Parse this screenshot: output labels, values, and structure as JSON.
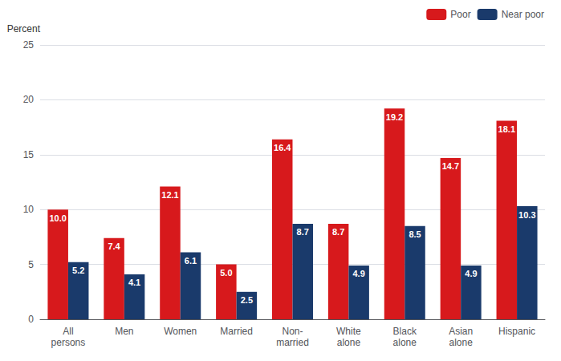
{
  "chart_data": {
    "type": "bar",
    "categories": [
      "All\npersons",
      "Men",
      "Women",
      "Married",
      "Non-\nmarried",
      "White\nalone",
      "Black\nalone",
      "Asian\nalone",
      "Hispanic"
    ],
    "series": [
      {
        "name": "Poor",
        "color": "#d7191c",
        "values": [
          10.0,
          7.4,
          12.1,
          5.0,
          16.4,
          8.7,
          19.2,
          14.7,
          18.1
        ],
        "value_labels": [
          "10.0",
          "7.4",
          "12.1",
          "5.0",
          "16.4",
          "8.7",
          "19.2",
          "14.7",
          "18.1"
        ]
      },
      {
        "name": "Near poor",
        "color": "#1a3a6b",
        "values": [
          5.2,
          4.1,
          6.1,
          2.5,
          8.7,
          4.9,
          8.5,
          4.9,
          10.3
        ],
        "value_labels": [
          "5.2",
          "4.1",
          "6.1",
          "2.5",
          "8.7",
          "4.9",
          "8.5",
          "4.9",
          "10.3"
        ]
      }
    ],
    "ylabel": "Percent",
    "ylim": [
      0,
      25
    ],
    "yticks": [
      0,
      5,
      10,
      15,
      20,
      25
    ],
    "grid": true,
    "legend": "upper right",
    "data_labels": true
  }
}
